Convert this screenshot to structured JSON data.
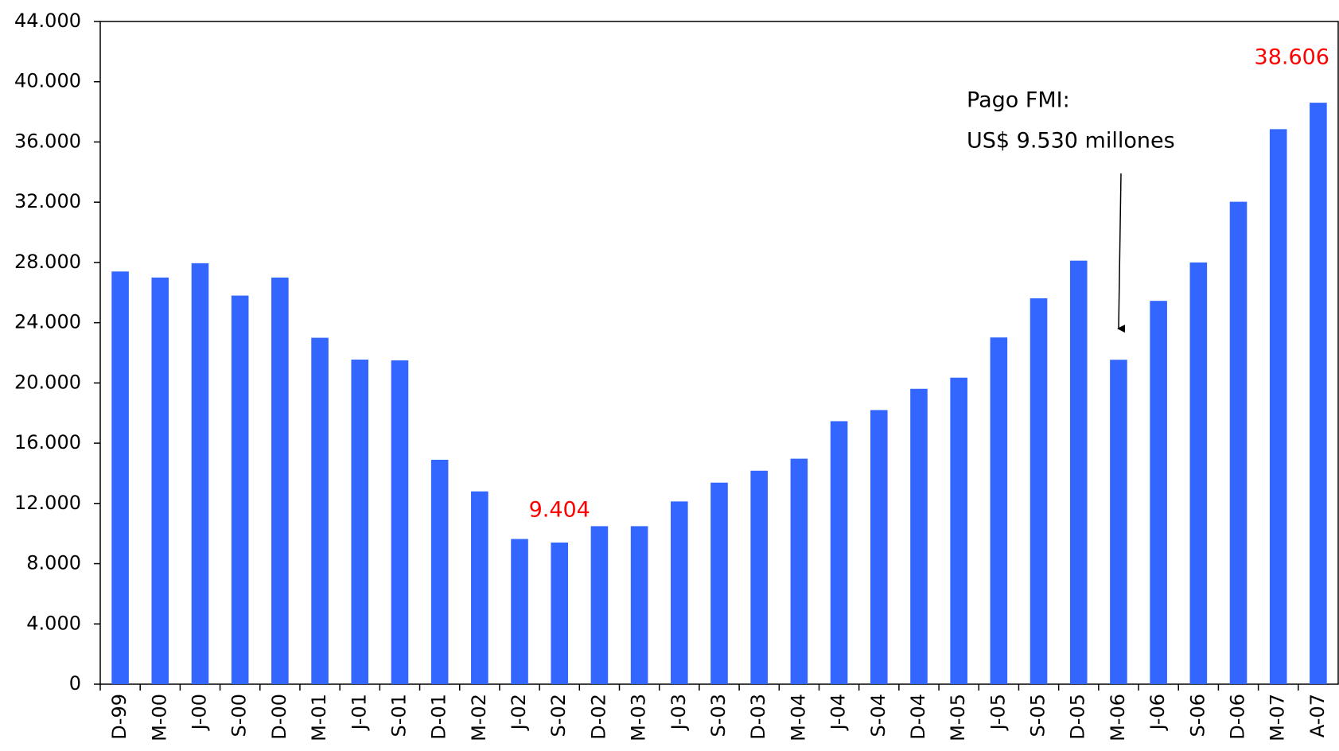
{
  "chart_data": {
    "type": "bar",
    "categories": [
      "D-99",
      "M-00",
      "J-00",
      "S-00",
      "D-00",
      "M-01",
      "J-01",
      "S-01",
      "D-01",
      "M-02",
      "J-02",
      "S-02",
      "D-02",
      "M-03",
      "J-03",
      "S-03",
      "D-03",
      "M-04",
      "J-04",
      "S-04",
      "D-04",
      "M-05",
      "J-05",
      "S-05",
      "D-05",
      "M-06",
      "J-06",
      "S-06",
      "D-06",
      "M-07",
      "A-07"
    ],
    "values": [
      27400,
      27000,
      27950,
      25800,
      27000,
      23000,
      21550,
      21500,
      14900,
      12800,
      9640,
      9404,
      10490,
      10490,
      12130,
      13380,
      14170,
      14970,
      17460,
      18200,
      19610,
      20350,
      23020,
      25620,
      28120,
      21540,
      25450,
      28000,
      32030,
      36850,
      38606
    ],
    "value_labels": [
      null,
      null,
      null,
      null,
      null,
      null,
      null,
      null,
      null,
      null,
      null,
      "9.404",
      null,
      null,
      null,
      null,
      null,
      null,
      null,
      null,
      null,
      null,
      null,
      null,
      null,
      null,
      null,
      null,
      null,
      null,
      "38.606"
    ],
    "value_label_color": "#ff0000",
    "color": "#3366ff",
    "ylim": [
      0,
      44000
    ],
    "yticks": [
      0,
      {
        "value": 4000,
        "label": "4.000"
      },
      {
        "value": 8000,
        "label": "8.000"
      },
      {
        "value": 12000,
        "label": "12.000"
      },
      {
        "value": 16000,
        "label": "16.000"
      },
      {
        "value": 20000,
        "label": "20.000"
      },
      {
        "value": 24000,
        "label": "24.000"
      },
      {
        "value": 28000,
        "label": "28.000"
      },
      {
        "value": 32000,
        "label": "32.000"
      },
      {
        "value": 36000,
        "label": "36.000"
      },
      {
        "value": 40000,
        "label": "40.000"
      },
      {
        "value": 44000,
        "label": "44.000"
      }
    ],
    "grid": false,
    "annotation": [
      "Pago FMI:",
      "US$ 9.530 millones"
    ]
  }
}
